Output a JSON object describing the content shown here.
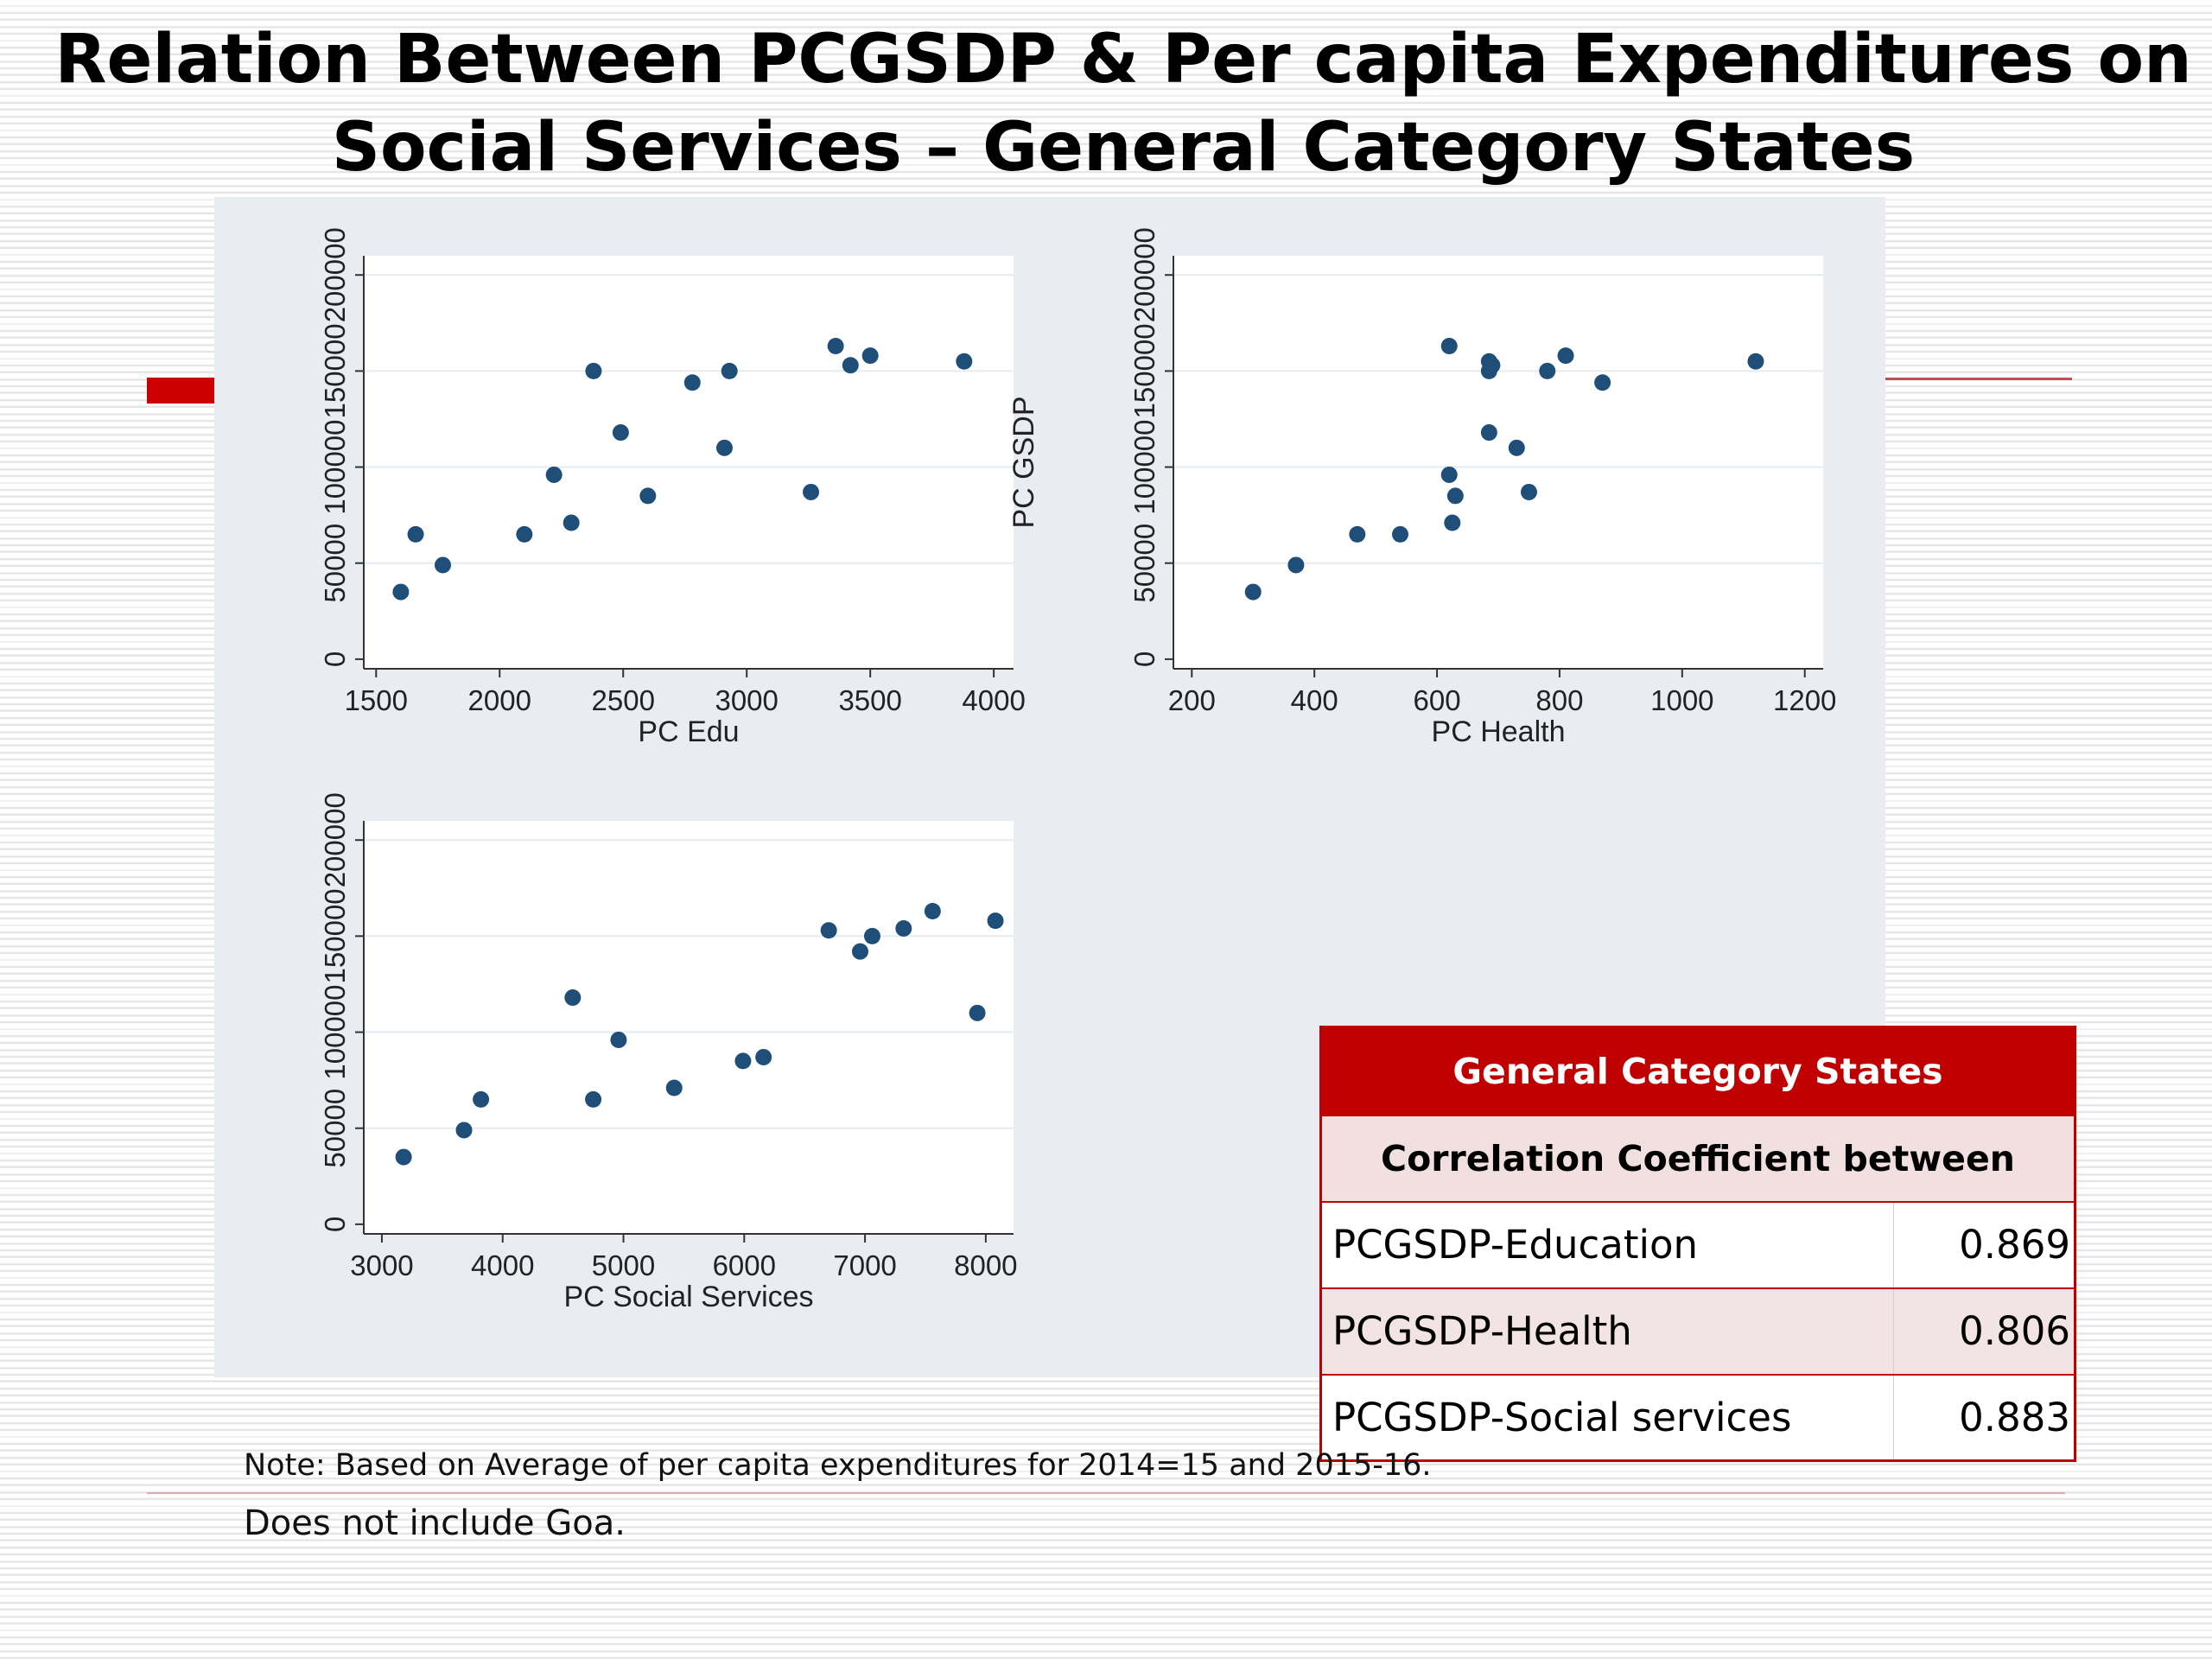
{
  "slide": {
    "title_line1": "Relation Between PCGSDP & Per capita Expenditures on",
    "title_line2": "Social Services – General Category States",
    "note_line1": "Note: Based on Average of per capita expenditures for 2014=15 and 2015-16.",
    "note_line2": "Does not include Goa.",
    "accent_color": "#c00000",
    "point_color": "#1f4e79"
  },
  "chart_data": [
    {
      "type": "scatter",
      "xlabel": "PC Edu",
      "ylabel": "",
      "xlim": [
        1450,
        4080
      ],
      "ylim": [
        -5000,
        210000
      ],
      "x_ticks": [
        1500,
        2000,
        2500,
        3000,
        3500,
        4000
      ],
      "y_ticks": [
        0,
        50000,
        100000,
        150000,
        200000
      ],
      "y_tick_labels": [
        "0",
        "50000",
        "100000",
        "150000",
        "200000"
      ],
      "x": [
        1600,
        1660,
        1770,
        2100,
        2290,
        2220,
        2380,
        2490,
        2600,
        2780,
        2910,
        2930,
        3260,
        3360,
        3420,
        3500,
        3880
      ],
      "y": [
        35000,
        65000,
        49000,
        65000,
        71000,
        96000,
        150000,
        118000,
        85000,
        144000,
        110000,
        150000,
        87000,
        163000,
        153000,
        158000,
        155000
      ]
    },
    {
      "type": "scatter",
      "xlabel": "PC Health",
      "ylabel": "PC GSDP",
      "xlim": [
        170,
        1230
      ],
      "ylim": [
        -5000,
        210000
      ],
      "x_ticks": [
        200,
        400,
        600,
        800,
        1000,
        1200
      ],
      "y_ticks": [
        0,
        50000,
        100000,
        150000,
        200000
      ],
      "y_tick_labels": [
        "0",
        "50000",
        "100000",
        "150000",
        "200000"
      ],
      "x": [
        300,
        370,
        470,
        540,
        620,
        625,
        620,
        630,
        685,
        685,
        690,
        685,
        730,
        750,
        780,
        810,
        870,
        1120
      ],
      "y": [
        35000,
        49000,
        65000,
        65000,
        163000,
        71000,
        96000,
        85000,
        118000,
        150000,
        153000,
        155000,
        110000,
        87000,
        150000,
        158000,
        144000,
        155000
      ]
    },
    {
      "type": "scatter",
      "xlabel": "PC Social Services",
      "ylabel": "",
      "xlim": [
        2850,
        8230
      ],
      "ylim": [
        -5000,
        210000
      ],
      "x_ticks": [
        3000,
        4000,
        5000,
        6000,
        7000,
        8000
      ],
      "y_ticks": [
        0,
        50000,
        100000,
        150000,
        200000
      ],
      "y_tick_labels": [
        "0",
        "50000",
        "100000",
        "150000",
        "200000"
      ],
      "x": [
        3180,
        3680,
        3820,
        4580,
        4750,
        4960,
        5420,
        5990,
        6160,
        6700,
        6960,
        7060,
        7320,
        7560,
        7930,
        8080
      ],
      "y": [
        35000,
        49000,
        65000,
        118000,
        65000,
        96000,
        71000,
        85000,
        87000,
        153000,
        142000,
        150000,
        154000,
        163000,
        110000,
        158000
      ]
    }
  ],
  "table": {
    "header": "General Category States",
    "subheader": "Correlation Coefficient between",
    "rows": [
      {
        "label": "PCGSDP-Education",
        "value": "0.869"
      },
      {
        "label": "PCGSDP-Health",
        "value": "0.806"
      },
      {
        "label": "PCGSDP-Social services",
        "value": "0.883"
      }
    ]
  }
}
